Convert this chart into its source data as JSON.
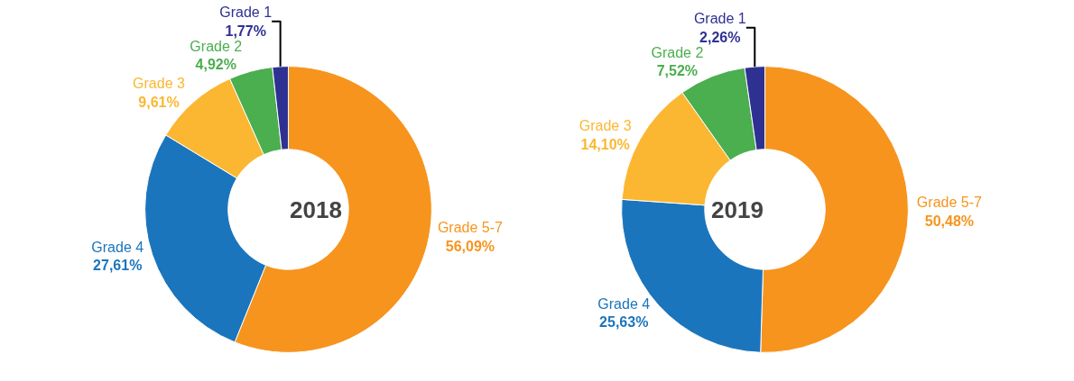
{
  "chart_data": [
    {
      "type": "donut",
      "title": "2018",
      "categories": [
        "Grade 5-7",
        "Grade 4",
        "Grade 3",
        "Grade 2",
        "Grade 1"
      ],
      "values": [
        56.09,
        27.61,
        9.61,
        4.92,
        1.77
      ],
      "value_labels": [
        "56,09%",
        "27,61%",
        "9,61%",
        "4,92%",
        "1,77%"
      ],
      "colors": [
        "#f7941d",
        "#1b75bc",
        "#fbb731",
        "#4bae4f",
        "#2e3192"
      ],
      "legend": false
    },
    {
      "type": "donut",
      "title": "2019",
      "categories": [
        "Grade 5-7",
        "Grade 4",
        "Grade 3",
        "Grade 2",
        "Grade 1"
      ],
      "values": [
        50.48,
        25.63,
        14.1,
        7.52,
        2.26
      ],
      "value_labels": [
        "50,48%",
        "25,63%",
        "14,10%",
        "7,52%",
        "2,26%"
      ],
      "colors": [
        "#f7941d",
        "#1b75bc",
        "#fbb731",
        "#4bae4f",
        "#2e3192"
      ],
      "legend": false
    }
  ]
}
